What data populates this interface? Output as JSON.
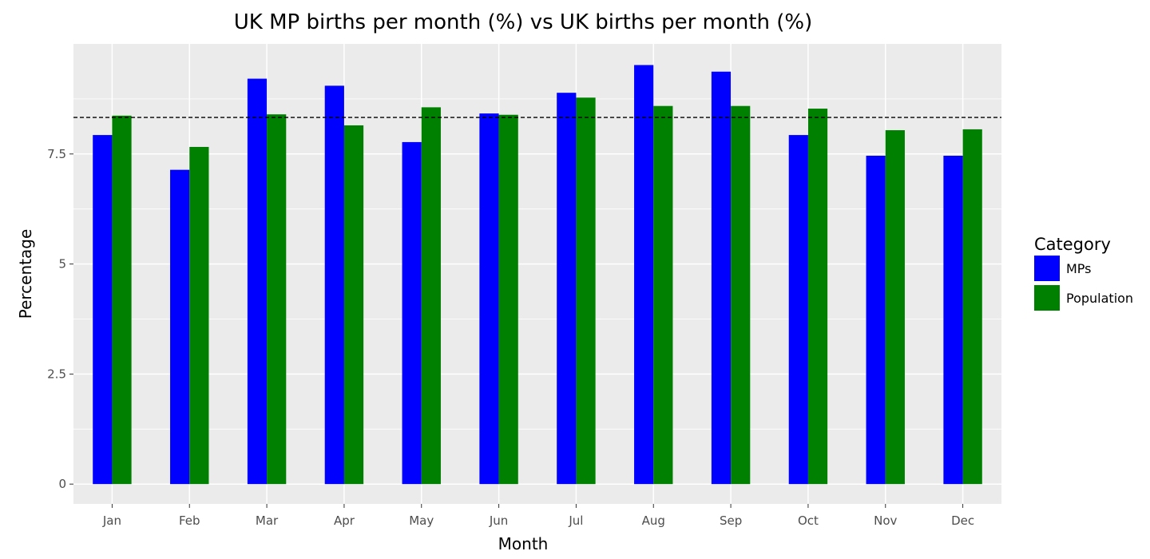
{
  "chart_data": {
    "type": "bar",
    "title": "UK MP births per month (%) vs UK births per month (%)",
    "xlabel": "Month",
    "ylabel": "Percentage",
    "categories": [
      "Jan",
      "Feb",
      "Mar",
      "Apr",
      "May",
      "Jun",
      "Jul",
      "Aug",
      "Sep",
      "Oct",
      "Nov",
      "Dec"
    ],
    "series": [
      {
        "name": "MPs",
        "color": "#0000ff",
        "values": [
          7.93,
          7.14,
          9.21,
          9.05,
          7.77,
          8.42,
          8.89,
          9.52,
          9.37,
          7.93,
          7.46,
          7.46
        ]
      },
      {
        "name": "Population",
        "color": "#008000",
        "values": [
          8.37,
          7.66,
          8.4,
          8.15,
          8.56,
          8.39,
          8.78,
          8.59,
          8.59,
          8.53,
          8.04,
          8.06
        ]
      }
    ],
    "reference_line": {
      "value": 8.33,
      "style": "dashed",
      "color": "#000000"
    },
    "ylim": [
      -0.45,
      10.0
    ],
    "yticks": [
      0,
      2.5,
      5,
      7.5
    ],
    "ytick_labels": [
      "0",
      "2.5",
      "5",
      "7.5"
    ],
    "legend": {
      "title": "Category",
      "placement": "right"
    },
    "grid": true,
    "panel_background": "#ebebeb",
    "grid_color": "#ffffff"
  }
}
